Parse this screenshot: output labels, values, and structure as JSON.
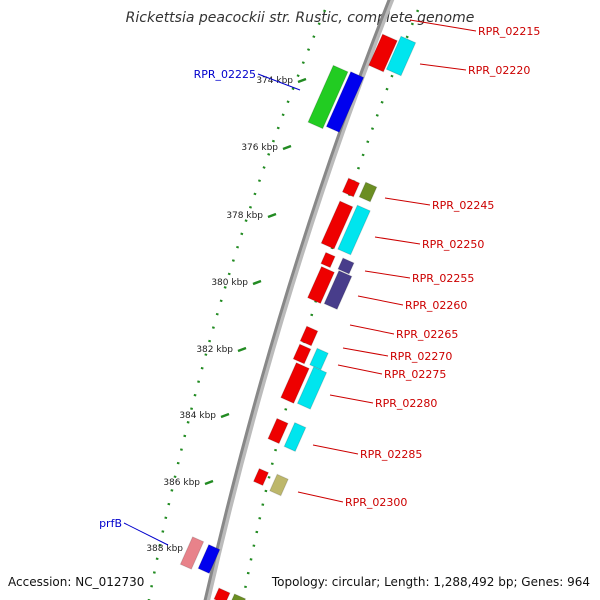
{
  "title": "Rickettsia peacockii str. Rustic, complete genome",
  "accession": "Accession: NC_012730",
  "summary": "Topology: circular; Length: 1,288,492 bp; Genes: 964",
  "colors": {
    "red": "#ee0000",
    "cyan": "#00e5ee",
    "blue": "#0000ee",
    "green": "#22cc22",
    "olive": "#6b8e23",
    "slate": "#483d8b",
    "pink": "#e8828a",
    "khaki": "#bdb76b",
    "tick": "#228b22",
    "label_red": "#cc0000",
    "label_blue": "#0000cc"
  },
  "ticks": [
    {
      "label": "374 kbp",
      "kbp": 374
    },
    {
      "label": "376 kbp",
      "kbp": 376
    },
    {
      "label": "378 kbp",
      "kbp": 378
    },
    {
      "label": "380 kbp",
      "kbp": 380
    },
    {
      "label": "382 kbp",
      "kbp": 382
    },
    {
      "label": "384 kbp",
      "kbp": 384
    },
    {
      "label": "386 kbp",
      "kbp": 386
    },
    {
      "label": "388 kbp",
      "kbp": 388
    }
  ],
  "gene_labels": [
    {
      "text": "RPR_02215",
      "color": "red"
    },
    {
      "text": "RPR_02220",
      "color": "red"
    },
    {
      "text": "RPR_02225",
      "color": "blue"
    },
    {
      "text": "RPR_02245",
      "color": "red"
    },
    {
      "text": "RPR_02250",
      "color": "red"
    },
    {
      "text": "RPR_02255",
      "color": "red"
    },
    {
      "text": "RPR_02260",
      "color": "red"
    },
    {
      "text": "RPR_02265",
      "color": "red"
    },
    {
      "text": "RPR_02270",
      "color": "red"
    },
    {
      "text": "RPR_02275",
      "color": "red"
    },
    {
      "text": "RPR_02280",
      "color": "red"
    },
    {
      "text": "RPR_02285",
      "color": "red"
    },
    {
      "text": "RPR_02300",
      "color": "red"
    },
    {
      "text": "prfB",
      "color": "blue"
    }
  ]
}
